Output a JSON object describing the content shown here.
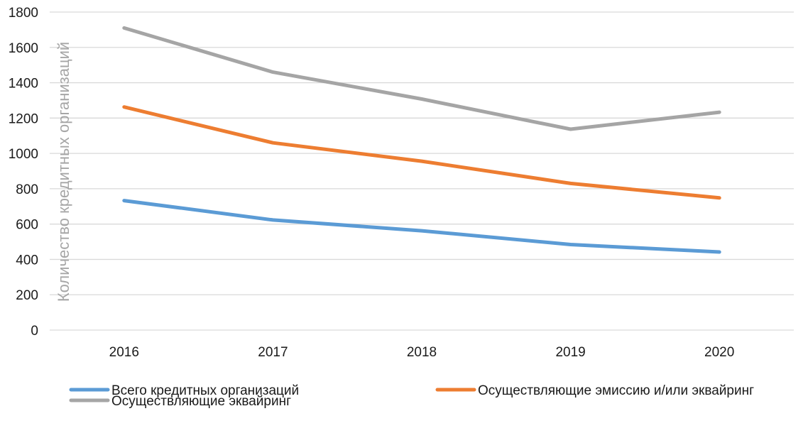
{
  "chart_data": {
    "type": "line",
    "x": [
      "2016",
      "2017",
      "2018",
      "2019",
      "2020"
    ],
    "ylim": [
      0,
      1800
    ],
    "yticks": [
      0,
      200,
      400,
      600,
      800,
      1000,
      1200,
      1400,
      1600,
      1800
    ],
    "ylabel": "Количество кредитных организаций",
    "xlabel": "",
    "title": "",
    "grid": true,
    "legend_position": "bottom",
    "series": [
      {
        "name": "Всего кредитных организаций",
        "color": "#5b9bd5",
        "values": [
          733,
          623,
          562,
          484,
          442
        ]
      },
      {
        "name": "Осуществляющие эмиссию и/или эквайринг",
        "color": "#ed7d31",
        "values": [
          1263,
          1060,
          956,
          830,
          748
        ]
      },
      {
        "name": "Осуществляющие эквайринг",
        "color": "#a5a5a5",
        "values": [
          1710,
          1460,
          1308,
          1137,
          1233
        ]
      }
    ]
  }
}
